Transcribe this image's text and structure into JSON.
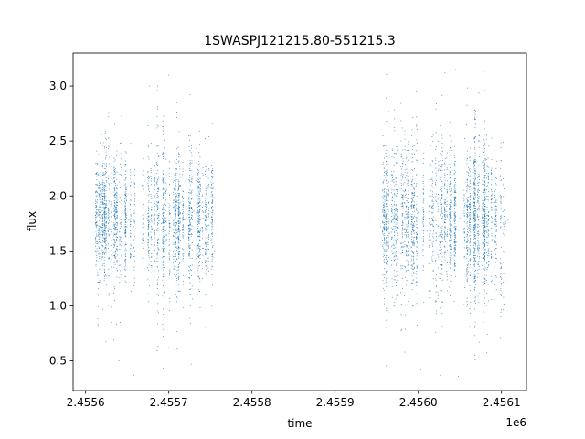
{
  "chart_data": {
    "type": "scatter",
    "title": "1SWASPJ121215.80-551215.3",
    "xlabel": "time",
    "ylabel": "flux",
    "x_offset_label": "1e6",
    "xlim": [
      2455585,
      2456130
    ],
    "ylim": [
      0.23,
      3.3
    ],
    "x_ticks": [
      2455600,
      2455700,
      2455800,
      2455900,
      2456000,
      2456100
    ],
    "x_tick_labels": [
      "2.4556",
      "2.4557",
      "2.4558",
      "2.4559",
      "2.4560",
      "2.4561"
    ],
    "y_ticks": [
      0.5,
      1.0,
      1.5,
      2.0,
      2.5,
      3.0
    ],
    "y_tick_labels": [
      "0.5",
      "1.0",
      "1.5",
      "2.0",
      "2.5",
      "3.0"
    ],
    "grid": false,
    "marker_color": "#1f77b4",
    "series": [
      {
        "segments": [
          {
            "x_range": [
              2455612,
              2455755
            ],
            "flux_center": 1.78,
            "flux_spread": 0.28,
            "flux_min": 0.35,
            "flux_max": 3.1
          },
          {
            "x_range": [
              2455955,
              2456108
            ],
            "flux_center": 1.78,
            "flux_spread": 0.3,
            "flux_min": 0.35,
            "flux_max": 3.15
          }
        ],
        "values": [
          [
            2455612,
            1.75
          ],
          [
            2455616,
            1.82
          ],
          [
            2455620,
            1.68
          ],
          [
            2455625,
            1.9
          ],
          [
            2455630,
            1.7
          ],
          [
            2455636,
            1.85
          ],
          [
            2455641,
            1.6
          ],
          [
            2455647,
            1.95
          ],
          [
            2455652,
            1.78
          ],
          [
            2455658,
            1.72
          ],
          [
            2455663,
            1.88
          ],
          [
            2455669,
            1.65
          ],
          [
            2455674,
            1.8
          ],
          [
            2455680,
            1.7
          ],
          [
            2455685,
            1.92
          ],
          [
            2455691,
            1.75
          ],
          [
            2455697,
            1.6
          ],
          [
            2455702,
            1.84
          ],
          [
            2455708,
            1.7
          ],
          [
            2455713,
            1.9
          ],
          [
            2455719,
            1.78
          ],
          [
            2455724,
            1.66
          ],
          [
            2455730,
            1.86
          ],
          [
            2455735,
            1.74
          ],
          [
            2455741,
            1.8
          ],
          [
            2455746,
            1.62
          ],
          [
            2455752,
            1.7
          ],
          [
            2455755,
            1.5
          ],
          [
            2455955,
            1.72
          ],
          [
            2455960,
            1.8
          ],
          [
            2455966,
            1.66
          ],
          [
            2455972,
            1.88
          ],
          [
            2455977,
            1.75
          ],
          [
            2455983,
            1.7
          ],
          [
            2455988,
            1.9
          ],
          [
            2455994,
            1.62
          ],
          [
            2456000,
            1.85
          ],
          [
            2456005,
            1.76
          ],
          [
            2456011,
            1.68
          ],
          [
            2456016,
            1.9
          ],
          [
            2456022,
            1.74
          ],
          [
            2456027,
            1.82
          ],
          [
            2456033,
            1.65
          ],
          [
            2456039,
            1.88
          ],
          [
            2456044,
            1.72
          ],
          [
            2456050,
            1.8
          ],
          [
            2456055,
            1.7
          ],
          [
            2456061,
            1.92
          ],
          [
            2456066,
            1.76
          ],
          [
            2456072,
            1.64
          ],
          [
            2456078,
            1.86
          ],
          [
            2456083,
            1.74
          ],
          [
            2456089,
            1.8
          ],
          [
            2456094,
            1.7
          ],
          [
            2456100,
            1.82
          ],
          [
            2456105,
            1.75
          ],
          [
            2456108,
            1.78
          ],
          [
            2455640,
            0.5
          ],
          [
            2455658,
            0.37
          ],
          [
            2455700,
            0.62
          ],
          [
            2455727,
            0.47
          ],
          [
            2456003,
            0.42
          ],
          [
            2456048,
            0.36
          ],
          [
            2455700,
            3.1
          ],
          [
            2456045,
            3.15
          ],
          [
            2455677,
            3.0
          ],
          [
            2456032,
            3.12
          ]
        ]
      }
    ]
  }
}
